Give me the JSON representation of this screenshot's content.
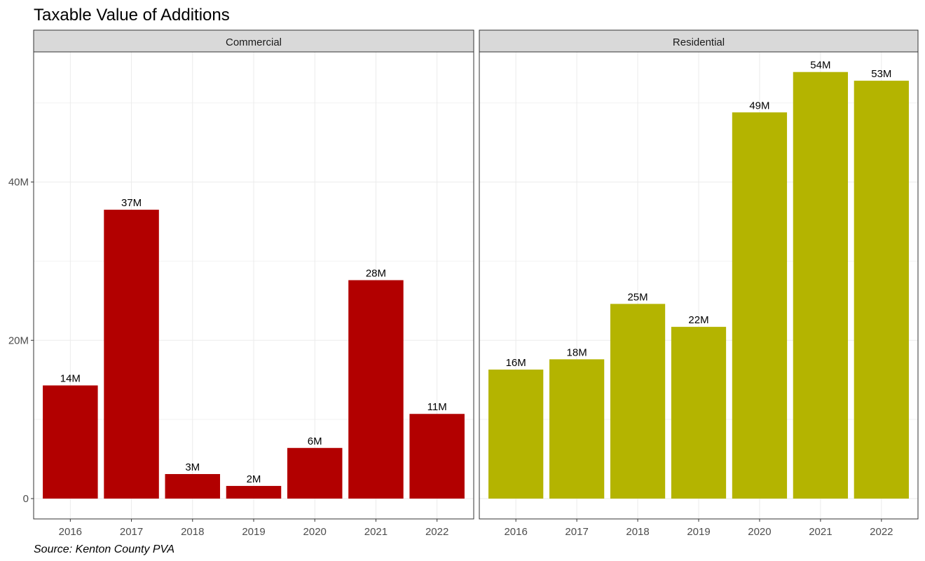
{
  "chart_data": {
    "type": "bar",
    "title": "Taxable Value of Additions",
    "caption": "Source: Kenton County PVA",
    "xlabel": "",
    "ylabel": "",
    "ylim": [
      0,
      56000000
    ],
    "yticks": [
      {
        "value": 0,
        "label": "0"
      },
      {
        "value": 20000000,
        "label": "20M"
      },
      {
        "value": 40000000,
        "label": "40M"
      }
    ],
    "categories": [
      "2016",
      "2017",
      "2018",
      "2019",
      "2020",
      "2021",
      "2022"
    ],
    "grid": true,
    "legend": "none",
    "panels": [
      {
        "name": "Commercial",
        "color": "#b20000",
        "values": [
          14300000,
          36500000,
          3100000,
          1600000,
          6400000,
          27600000,
          10700000
        ],
        "labels": [
          "14M",
          "37M",
          "3M",
          "2M",
          "6M",
          "28M",
          "11M"
        ]
      },
      {
        "name": "Residential",
        "color": "#b4b400",
        "values": [
          16300000,
          17600000,
          24600000,
          21700000,
          48800000,
          53900000,
          52800000
        ],
        "labels": [
          "16M",
          "18M",
          "25M",
          "22M",
          "49M",
          "54M",
          "53M"
        ]
      }
    ]
  }
}
